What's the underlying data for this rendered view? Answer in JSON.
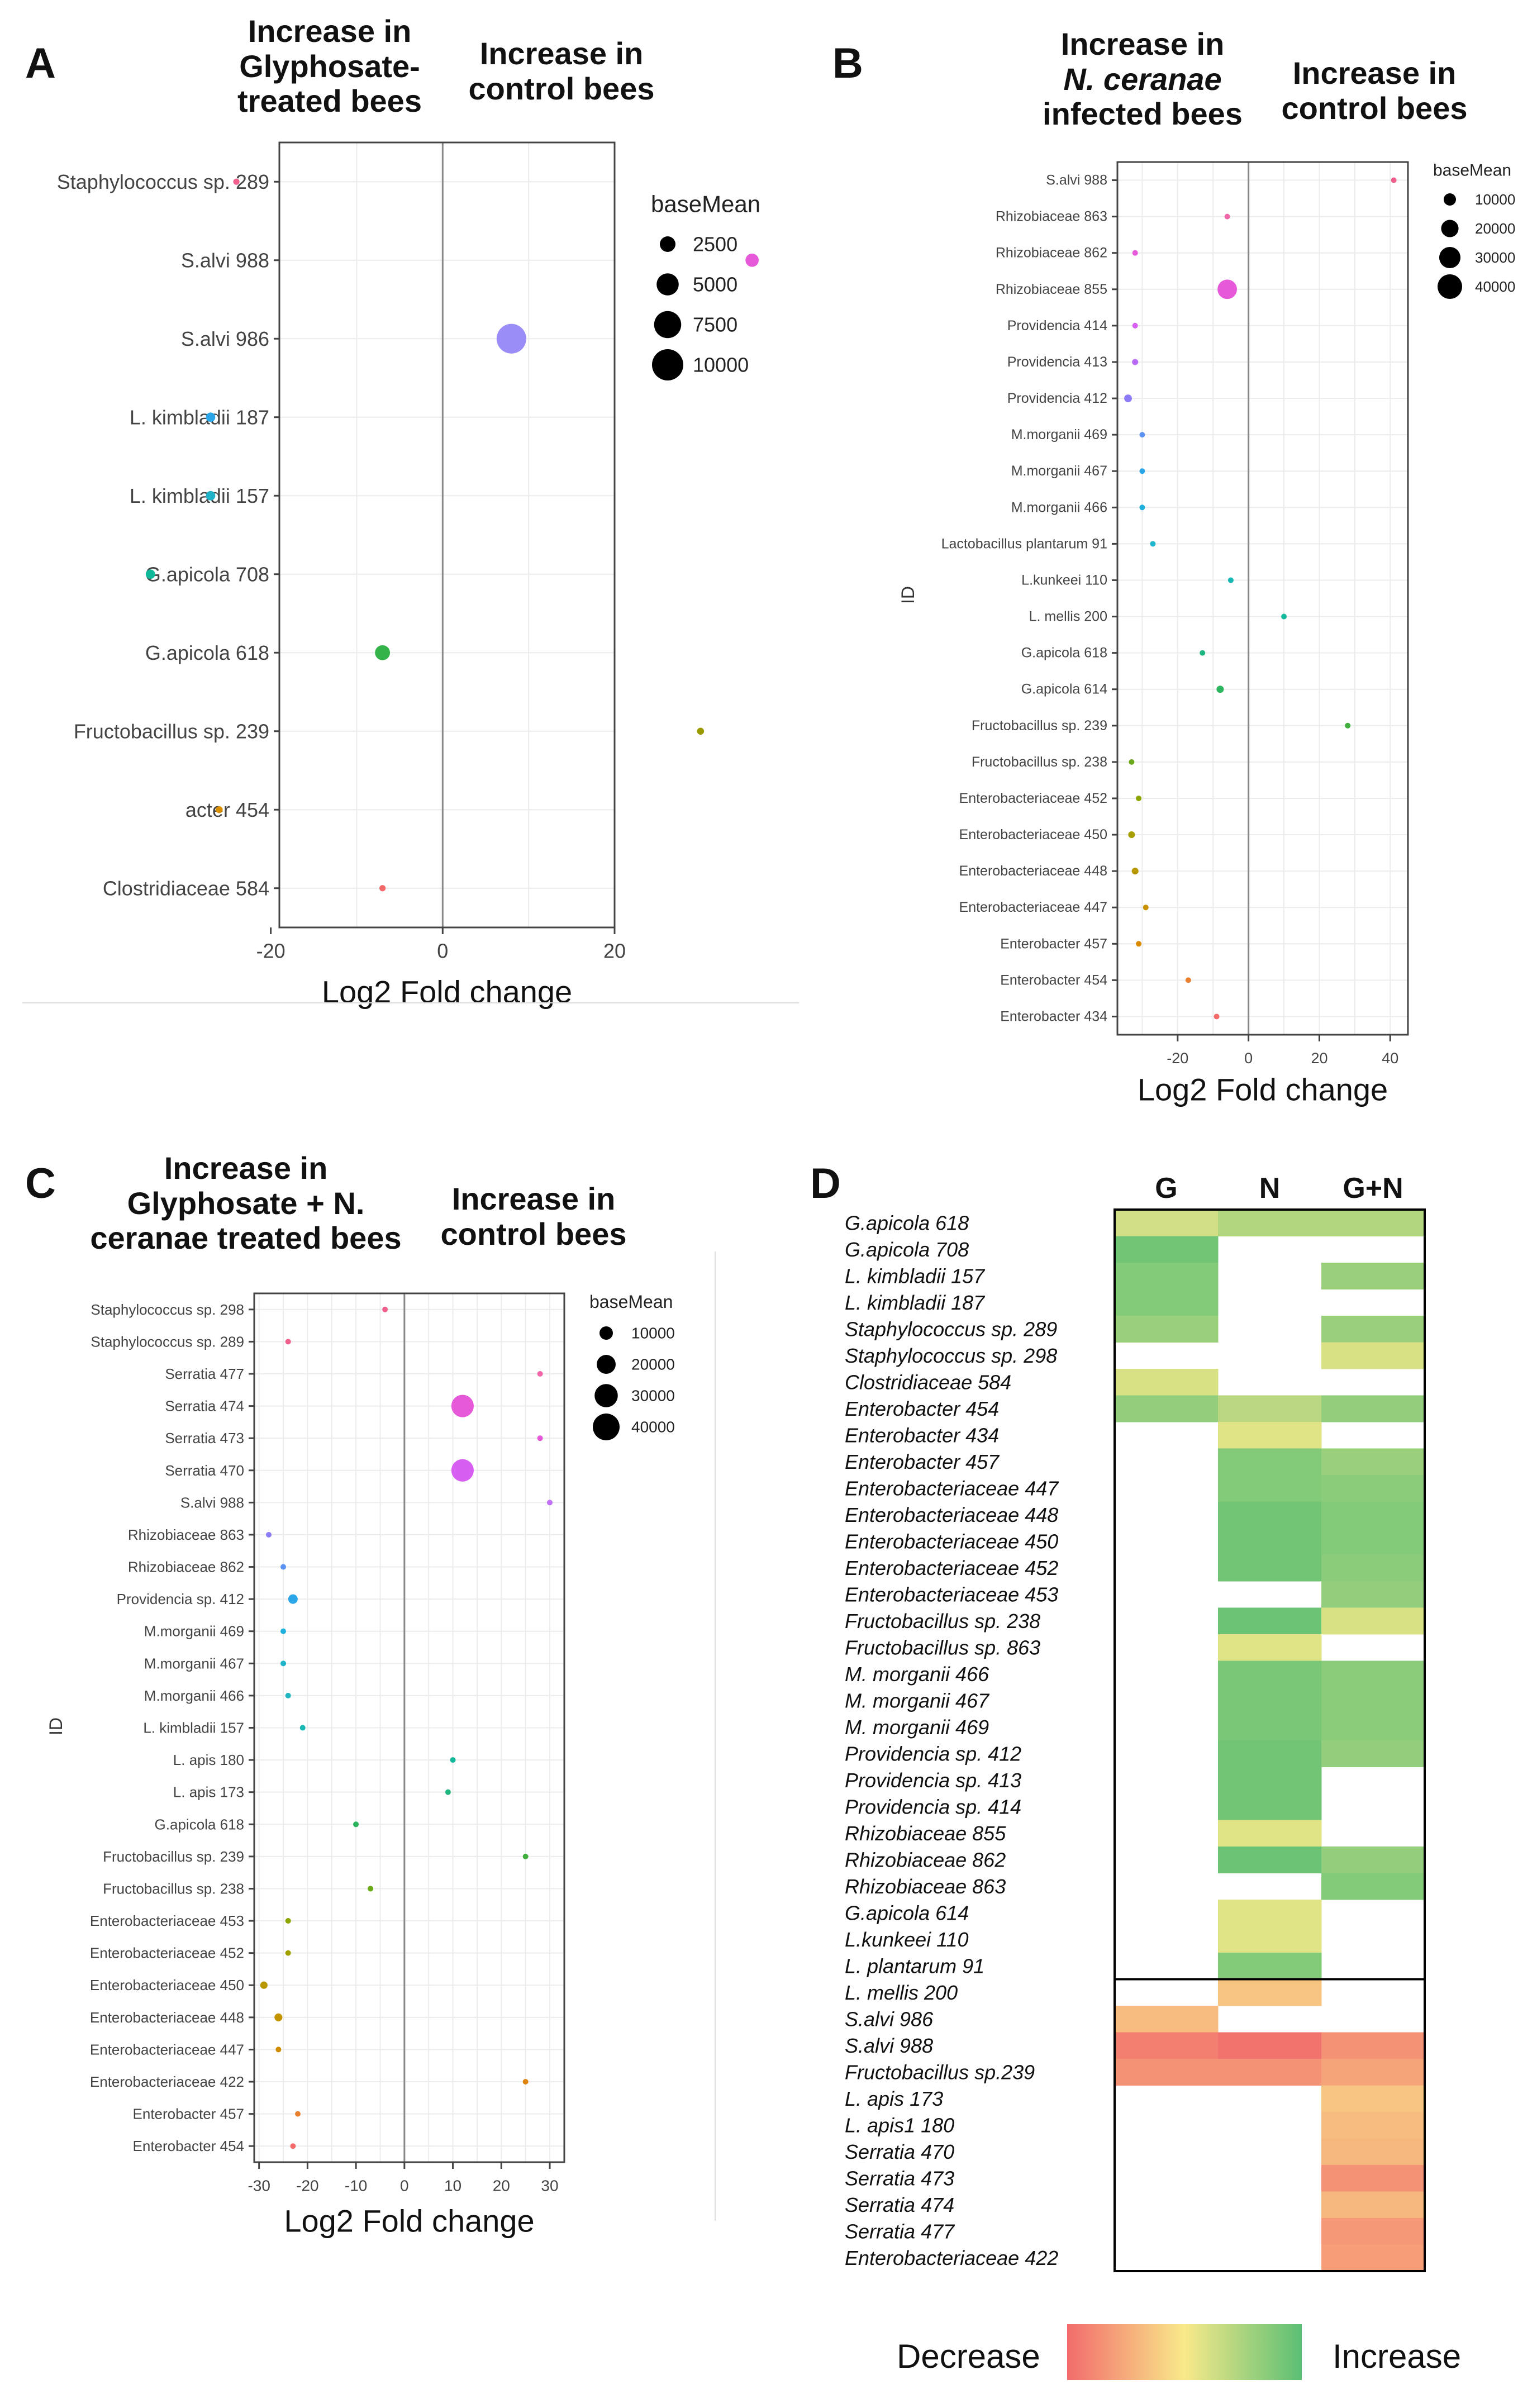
{
  "panels": {
    "A": {
      "letter": "A",
      "header_left": "Increase in Glyphosate-treated bees",
      "header_left_lines": [
        "Increase in",
        "Glyphosate-",
        "treated bees"
      ],
      "header_right_lines": [
        "Increase in",
        "control bees"
      ]
    },
    "B": {
      "letter": "B",
      "header_left_lines": [
        "Increase in",
        "N. ceranae",
        "infected bees"
      ],
      "header_right_lines": [
        "Increase in",
        "control bees"
      ]
    },
    "C": {
      "letter": "C",
      "header_left_lines": [
        "Increase in",
        "Glyphosate + N.",
        "ceranae treated bees"
      ],
      "header_right_lines": [
        "Increase in",
        "control bees"
      ]
    },
    "D": {
      "letter": "D"
    }
  },
  "chart_data": [
    {
      "panel": "A",
      "type": "scatter",
      "xlabel": "Log2 Fold change",
      "ylabel": "",
      "xlim": [
        -19,
        20
      ],
      "xticks": [
        -20,
        0,
        20
      ],
      "legend": {
        "title": "baseMean",
        "sizes": [
          2500,
          5000,
          7500,
          10000
        ],
        "position": "right"
      },
      "points": [
        {
          "id": "Staphylococcus sp. 289",
          "x": -24,
          "baseMean": 400,
          "color": "#f0608c"
        },
        {
          "id": "S.alvi 988",
          "x": 36,
          "baseMean": 1800,
          "color": "#e659d8"
        },
        {
          "id": "S.alvi 986",
          "x": 8,
          "baseMean": 9000,
          "color": "#9a8df7"
        },
        {
          "id": "L. kimbladii 187",
          "x": -27,
          "baseMean": 900,
          "color": "#2aa6e8"
        },
        {
          "id": "L. kimbladii 157",
          "x": -27,
          "baseMean": 900,
          "color": "#1fb2c8"
        },
        {
          "id": "G.apicola 708",
          "x": -34,
          "baseMean": 900,
          "color": "#10b89a"
        },
        {
          "id": "G.apicola 618",
          "x": -7,
          "baseMean": 2300,
          "color": "#33b34a"
        },
        {
          "id": "Fructobacillus sp. 239",
          "x": 30,
          "baseMean": 500,
          "color": "#9a9a00"
        },
        {
          "id": "acter 454",
          "x": -26,
          "baseMean": 500,
          "color": "#d89000"
        },
        {
          "id": "Clostridiaceae 584",
          "x": -7,
          "baseMean": 400,
          "color": "#f46a6a"
        }
      ]
    },
    {
      "panel": "B",
      "type": "scatter",
      "xlabel": "Log2 Fold change",
      "ylabel": "ID",
      "xlim": [
        -37,
        45
      ],
      "xticks": [
        -20,
        0,
        20,
        40
      ],
      "legend": {
        "title": "baseMean",
        "sizes": [
          10000,
          20000,
          30000,
          40000
        ],
        "position": "right"
      },
      "points": [
        {
          "id": "S.alvi 988",
          "x": 41,
          "baseMean": 1500,
          "color": "#f0608c"
        },
        {
          "id": "Rhizobiaceae 863",
          "x": -6,
          "baseMean": 1200,
          "color": "#f065a8"
        },
        {
          "id": "Rhizobiaceae 862",
          "x": -32,
          "baseMean": 1200,
          "color": "#e659d8"
        },
        {
          "id": "Rhizobiaceae 855",
          "x": -6,
          "baseMean": 25000,
          "color": "#e659d8"
        },
        {
          "id": "Providencia 414",
          "x": -32,
          "baseMean": 1500,
          "color": "#d65ef0"
        },
        {
          "id": "Providencia 413",
          "x": -32,
          "baseMean": 2500,
          "color": "#b66af5"
        },
        {
          "id": "Providencia 412",
          "x": -34,
          "baseMean": 4000,
          "color": "#8d7cf7"
        },
        {
          "id": "M.morganii 469",
          "x": -30,
          "baseMean": 1500,
          "color": "#5b93f2"
        },
        {
          "id": "M.morganii 467",
          "x": -30,
          "baseMean": 1500,
          "color": "#2aa6e8"
        },
        {
          "id": "M.morganii 466",
          "x": -30,
          "baseMean": 1500,
          "color": "#1fb0de"
        },
        {
          "id": "Lactobacillus plantarum 91",
          "x": -27,
          "baseMean": 800,
          "color": "#1fb6cc"
        },
        {
          "id": "L.kunkeei 110",
          "x": -5,
          "baseMean": 1200,
          "color": "#17b7b3"
        },
        {
          "id": "L. mellis 200",
          "x": 10,
          "baseMean": 1200,
          "color": "#14b89a"
        },
        {
          "id": "G.apicola 618",
          "x": -13,
          "baseMean": 2000,
          "color": "#1fb57e"
        },
        {
          "id": "G.apicola 614",
          "x": -8,
          "baseMean": 3500,
          "color": "#2db45f"
        },
        {
          "id": "Fructobacillus sp. 239",
          "x": 28,
          "baseMean": 800,
          "color": "#3fae3c"
        },
        {
          "id": "Fructobacillus sp. 238",
          "x": -33,
          "baseMean": 1500,
          "color": "#6aaa18"
        },
        {
          "id": "Enterobacteriaceae 452",
          "x": -31,
          "baseMean": 1500,
          "color": "#8ea400"
        },
        {
          "id": "Enterobacteriaceae 450",
          "x": -33,
          "baseMean": 3000,
          "color": "#a89f00"
        },
        {
          "id": "Enterobacteriaceae 448",
          "x": -32,
          "baseMean": 3000,
          "color": "#b89800"
        },
        {
          "id": "Enterobacteriaceae 447",
          "x": -29,
          "baseMean": 600,
          "color": "#cb9200"
        },
        {
          "id": "Enterobacter 457",
          "x": -31,
          "baseMean": 1500,
          "color": "#d88a00"
        },
        {
          "id": "Enterobacter 454",
          "x": -17,
          "baseMean": 600,
          "color": "#e98030"
        },
        {
          "id": "Enterobacter 434",
          "x": -9,
          "baseMean": 600,
          "color": "#f46a6a"
        }
      ]
    },
    {
      "panel": "C",
      "type": "scatter",
      "xlabel": "Log2 Fold change",
      "ylabel": "ID",
      "xlim": [
        -31,
        33
      ],
      "xticks": [
        -30,
        -20,
        -10,
        0,
        10,
        20,
        30
      ],
      "legend": {
        "title": "baseMean",
        "sizes": [
          10000,
          20000,
          30000,
          40000
        ],
        "position": "right"
      },
      "points": [
        {
          "id": "Staphylococcus sp. 298",
          "x": -4,
          "baseMean": 800,
          "color": "#f0608c"
        },
        {
          "id": "Staphylococcus sp. 289",
          "x": -24,
          "baseMean": 800,
          "color": "#f0608c"
        },
        {
          "id": "Serratia 477",
          "x": 28,
          "baseMean": 1500,
          "color": "#f065a8"
        },
        {
          "id": "Serratia 474",
          "x": 12,
          "baseMean": 28000,
          "color": "#e659d8"
        },
        {
          "id": "Serratia 473",
          "x": 28,
          "baseMean": 1500,
          "color": "#e659d8"
        },
        {
          "id": "Serratia 470",
          "x": 12,
          "baseMean": 28000,
          "color": "#d65ef0"
        },
        {
          "id": "S.alvi 988",
          "x": 30,
          "baseMean": 1500,
          "color": "#c070f5"
        },
        {
          "id": "Rhizobiaceae 863",
          "x": -28,
          "baseMean": 1000,
          "color": "#8d7cf7"
        },
        {
          "id": "Rhizobiaceae 862",
          "x": -25,
          "baseMean": 1500,
          "color": "#5b93f2"
        },
        {
          "id": "Providencia sp. 412",
          "x": -23,
          "baseMean": 5000,
          "color": "#2aa6e8"
        },
        {
          "id": "M.morganii 469",
          "x": -25,
          "baseMean": 1500,
          "color": "#1fb0de"
        },
        {
          "id": "M.morganii 467",
          "x": -25,
          "baseMean": 1500,
          "color": "#1fb6cc"
        },
        {
          "id": "M.morganii 466",
          "x": -24,
          "baseMean": 1500,
          "color": "#1fb6c0"
        },
        {
          "id": "L. kimbladii 157",
          "x": -21,
          "baseMean": 700,
          "color": "#17b7b3"
        },
        {
          "id": "L. apis 180",
          "x": 10,
          "baseMean": 1500,
          "color": "#14b89a"
        },
        {
          "id": "L. apis 173",
          "x": 9,
          "baseMean": 1500,
          "color": "#1fb57e"
        },
        {
          "id": "G.apicola 618",
          "x": -10,
          "baseMean": 1500,
          "color": "#2db45f"
        },
        {
          "id": "Fructobacillus sp. 239",
          "x": 25,
          "baseMean": 700,
          "color": "#3fae3c"
        },
        {
          "id": "Fructobacillus sp. 238",
          "x": -7,
          "baseMean": 1500,
          "color": "#6aaa18"
        },
        {
          "id": "Enterobacteriaceae 453",
          "x": -24,
          "baseMean": 700,
          "color": "#8ea400"
        },
        {
          "id": "Enterobacteriaceae 452",
          "x": -24,
          "baseMean": 1000,
          "color": "#a0a000"
        },
        {
          "id": "Enterobacteriaceae 450",
          "x": -29,
          "baseMean": 3000,
          "color": "#b89800"
        },
        {
          "id": "Enterobacteriaceae 448",
          "x": -26,
          "baseMean": 3500,
          "color": "#c49400"
        },
        {
          "id": "Enterobacteriaceae 447",
          "x": -26,
          "baseMean": 700,
          "color": "#d08c00"
        },
        {
          "id": "Enterobacteriaceae 422",
          "x": 25,
          "baseMean": 700,
          "color": "#e08410"
        },
        {
          "id": "Enterobacter 457",
          "x": -22,
          "baseMean": 1500,
          "color": "#e98030"
        },
        {
          "id": "Enterobacter 454",
          "x": -23,
          "baseMean": 700,
          "color": "#f46a6a"
        }
      ]
    },
    {
      "panel": "D",
      "type": "heatmap",
      "columns": [
        "G",
        "N",
        "G+N"
      ],
      "legend": {
        "low_label": "Decrease",
        "high_label": "Increase",
        "colors": [
          "#f26c6c",
          "#f9e98a",
          "#5bbf73"
        ]
      },
      "rows": [
        {
          "label": "G.apicola 618",
          "values": [
            0.25,
            0.45,
            0.45
          ]
        },
        {
          "label": "G.apicola 708",
          "values": [
            0.85,
            null,
            null
          ]
        },
        {
          "label": "L. kimbladii 157",
          "values": [
            0.75,
            null,
            0.6
          ]
        },
        {
          "label": "L. kimbladii 187",
          "values": [
            0.75,
            null,
            null
          ]
        },
        {
          "label": "Staphylococcus sp. 289",
          "values": [
            0.6,
            null,
            0.6
          ]
        },
        {
          "label": "Staphylococcus sp. 298",
          "values": [
            null,
            null,
            0.2
          ]
        },
        {
          "label": "Clostridiaceae 584",
          "values": [
            0.2,
            null,
            null
          ]
        },
        {
          "label": "Enterobacter 454",
          "values": [
            0.65,
            0.4,
            0.65
          ]
        },
        {
          "label": "Enterobacter 434",
          "values": [
            null,
            0.15,
            null
          ]
        },
        {
          "label": "Enterobacter 457",
          "values": [
            null,
            0.75,
            0.6
          ]
        },
        {
          "label": "Enterobacteriaceae 447",
          "values": [
            null,
            0.75,
            0.7
          ]
        },
        {
          "label": "Enterobacteriaceae 448",
          "values": [
            null,
            0.85,
            0.75
          ]
        },
        {
          "label": "Enterobacteriaceae 450",
          "values": [
            null,
            0.85,
            0.75
          ]
        },
        {
          "label": "Enterobacteriaceae 452",
          "values": [
            null,
            0.85,
            0.7
          ]
        },
        {
          "label": "Enterobacteriaceae 453",
          "values": [
            null,
            null,
            0.65
          ]
        },
        {
          "label": "Fructobacillus sp. 238",
          "values": [
            null,
            0.9,
            0.2
          ]
        },
        {
          "label": "Fructobacillus sp. 863",
          "values": [
            null,
            0.15,
            null
          ]
        },
        {
          "label": "M. morganii 466",
          "values": [
            null,
            0.8,
            0.7
          ]
        },
        {
          "label": "M. morganii 467",
          "values": [
            null,
            0.8,
            0.7
          ]
        },
        {
          "label": "M. morganii 469",
          "values": [
            null,
            0.8,
            0.7
          ]
        },
        {
          "label": "Providencia sp. 412",
          "values": [
            null,
            0.85,
            0.65
          ]
        },
        {
          "label": "Providencia sp. 413",
          "values": [
            null,
            0.85,
            null
          ]
        },
        {
          "label": "Providencia sp. 414",
          "values": [
            null,
            0.85,
            null
          ]
        },
        {
          "label": "Rhizobiaceae 855",
          "values": [
            null,
            0.15,
            null
          ]
        },
        {
          "label": "Rhizobiaceae 862",
          "values": [
            null,
            0.9,
            0.65
          ]
        },
        {
          "label": "Rhizobiaceae 863",
          "values": [
            null,
            null,
            0.75
          ]
        },
        {
          "label": "G.apicola 614",
          "values": [
            null,
            0.15,
            null
          ]
        },
        {
          "label": "L.kunkeei 110",
          "values": [
            null,
            0.15,
            null
          ]
        },
        {
          "label": "L. plantarum 91",
          "values": [
            null,
            0.75,
            null
          ]
        },
        {
          "label": "L. mellis 200",
          "values": [
            null,
            -0.3,
            null
          ]
        },
        {
          "label": "S.alvi 986",
          "values": [
            -0.35,
            null,
            null
          ]
        },
        {
          "label": "S.alvi 988",
          "values": [
            -0.85,
            -0.95,
            -0.7
          ]
        },
        {
          "label": "Fructobacillus sp.239",
          "values": [
            -0.7,
            -0.7,
            -0.55
          ]
        },
        {
          "label": "L. apis 173",
          "values": [
            null,
            null,
            -0.3
          ]
        },
        {
          "label": "L. apis1 180",
          "values": [
            null,
            null,
            -0.35
          ]
        },
        {
          "label": "Serratia 470",
          "values": [
            null,
            null,
            -0.4
          ]
        },
        {
          "label": "Serratia 473",
          "values": [
            null,
            null,
            -0.7
          ]
        },
        {
          "label": "Serratia 474",
          "values": [
            null,
            null,
            -0.4
          ]
        },
        {
          "label": "Serratia 477",
          "values": [
            null,
            null,
            -0.65
          ]
        },
        {
          "label": "Enterobacteriaceae 422",
          "values": [
            null,
            null,
            -0.6
          ]
        }
      ]
    }
  ]
}
